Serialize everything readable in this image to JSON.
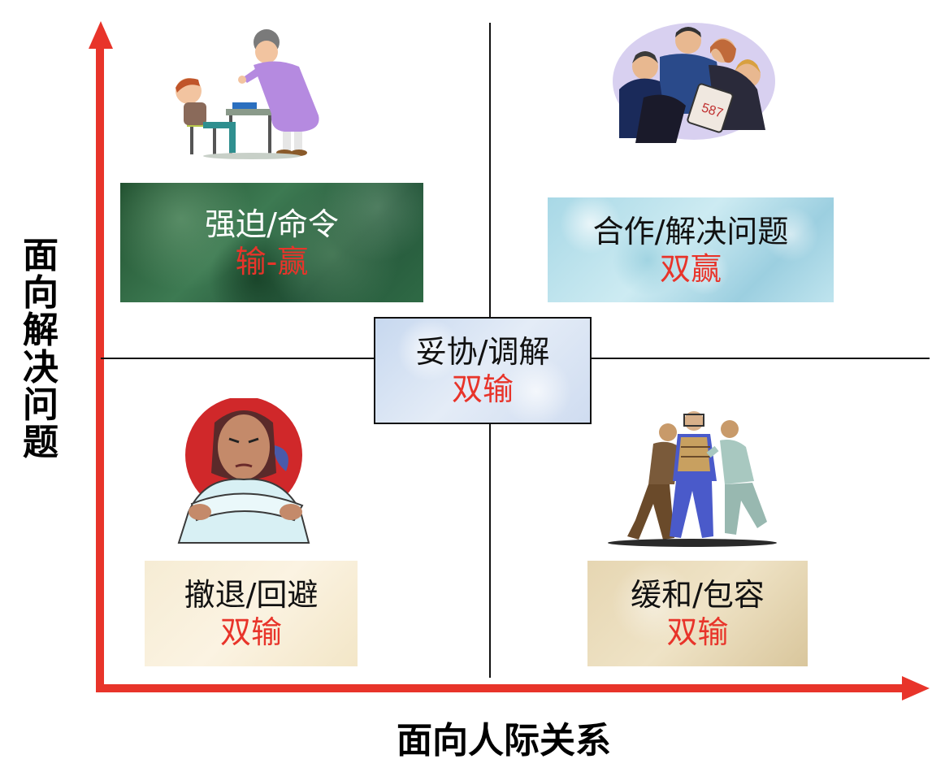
{
  "axes": {
    "y_label": "面向解决问题",
    "x_label": "面向人际关系"
  },
  "quadrants": {
    "top_left": {
      "title": "强迫/命令",
      "outcome": "输-赢"
    },
    "top_right": {
      "title": "合作/解决问题",
      "outcome": "双赢"
    },
    "center": {
      "title": "妥协/调解",
      "outcome": "双输"
    },
    "bottom_left": {
      "title": "撤退/回避",
      "outcome": "双输"
    },
    "bottom_right": {
      "title": "缓和/包容",
      "outcome": "双输"
    }
  },
  "colors": {
    "axis": "#e8342a",
    "outcome_text": "#e8342a",
    "grid": "#111111"
  },
  "icons": {
    "top_left": "teacher-scolding-student-icon",
    "top_right": "team-collaboration-icon",
    "bottom_left": "arms-crossed-girl-icon",
    "bottom_right": "referee-separating-men-icon"
  }
}
